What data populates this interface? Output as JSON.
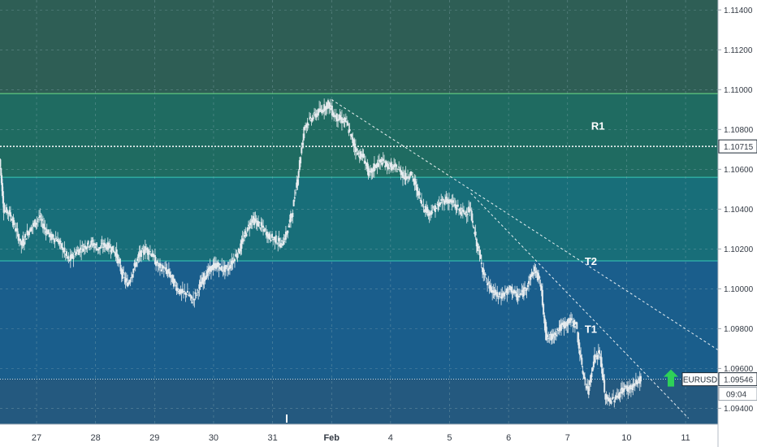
{
  "chart_data": {
    "type": "candlestick",
    "symbol": "EURUSD",
    "last_price": "1.09546",
    "countdown": "09:04",
    "y_ticks": [
      "1.11400",
      "1.11200",
      "1.11000",
      "1.10800",
      "1.10600",
      "1.10400",
      "1.10200",
      "1.10000",
      "1.09800",
      "1.09600",
      "1.09400"
    ],
    "y_tick_values": [
      1.114,
      1.112,
      1.11,
      1.108,
      1.106,
      1.104,
      1.102,
      1.1,
      1.098,
      1.096,
      1.094
    ],
    "ylim": [
      1.0932,
      1.1145
    ],
    "x_ticks": [
      {
        "label": "27",
        "day": 0,
        "bold": false
      },
      {
        "label": "28",
        "day": 1,
        "bold": false
      },
      {
        "label": "29",
        "day": 2,
        "bold": false
      },
      {
        "label": "30",
        "day": 3,
        "bold": false
      },
      {
        "label": "31",
        "day": 4,
        "bold": false
      },
      {
        "label": "Feb",
        "day": 5,
        "bold": true
      },
      {
        "label": "4",
        "day": 6,
        "bold": false
      },
      {
        "label": "5",
        "day": 7,
        "bold": false
      },
      {
        "label": "6",
        "day": 8,
        "bold": false
      },
      {
        "label": "7",
        "day": 9,
        "bold": false
      },
      {
        "label": "10",
        "day": 10,
        "bold": false
      },
      {
        "label": "11",
        "day": 11,
        "bold": false
      }
    ],
    "xlim": [
      -0.62,
      11.55
    ],
    "zones": [
      {
        "name": "R1",
        "from": 1.1056,
        "to": 1.1098,
        "color": "#1f6b61",
        "line": "#6ee08a"
      },
      {
        "name": "T2",
        "from": 1.1014,
        "to": 1.1056,
        "color": "#186e79",
        "line": "#38c9b9"
      },
      {
        "name": "T1",
        "from": 1.0932,
        "to": 1.1014,
        "color": "#1a5e8c",
        "line": "#38c9b9"
      }
    ],
    "zone_labels": [
      {
        "text": "R1",
        "day": 9.4,
        "price": 1.1082
      },
      {
        "text": "T2",
        "day": 9.29,
        "price": 1.1014
      },
      {
        "text": "T1",
        "day": 9.29,
        "price": 1.098
      }
    ],
    "horizontal_level": {
      "label": "1.10715",
      "price": 1.10715
    },
    "trendlines": [
      {
        "from": {
          "day": 5.0,
          "price": 1.1095
        },
        "to": {
          "day": 11.67,
          "price": 1.0967
        }
      },
      {
        "from": {
          "day": 7.36,
          "price": 1.1048
        },
        "to": {
          "day": 11.05,
          "price": 1.0935
        }
      }
    ],
    "series": [
      {
        "day": -0.62,
        "price": 1.1065
      },
      {
        "day": -0.55,
        "price": 1.104
      },
      {
        "day": -0.45,
        "price": 1.1038
      },
      {
        "day": -0.35,
        "price": 1.103
      },
      {
        "day": -0.25,
        "price": 1.1022
      },
      {
        "day": -0.15,
        "price": 1.1028
      },
      {
        "day": -0.05,
        "price": 1.1032
      },
      {
        "day": 0.05,
        "price": 1.1036
      },
      {
        "day": 0.15,
        "price": 1.103
      },
      {
        "day": 0.25,
        "price": 1.1026
      },
      {
        "day": 0.35,
        "price": 1.1025
      },
      {
        "day": 0.45,
        "price": 1.102
      },
      {
        "day": 0.55,
        "price": 1.1014
      },
      {
        "day": 0.65,
        "price": 1.1018
      },
      {
        "day": 0.75,
        "price": 1.102
      },
      {
        "day": 0.85,
        "price": 1.1022
      },
      {
        "day": 0.95,
        "price": 1.1023
      },
      {
        "day": 1.05,
        "price": 1.102
      },
      {
        "day": 1.15,
        "price": 1.1022
      },
      {
        "day": 1.25,
        "price": 1.1021
      },
      {
        "day": 1.35,
        "price": 1.1018
      },
      {
        "day": 1.45,
        "price": 1.1008
      },
      {
        "day": 1.55,
        "price": 1.1002
      },
      {
        "day": 1.65,
        "price": 1.101
      },
      {
        "day": 1.75,
        "price": 1.1017
      },
      {
        "day": 1.85,
        "price": 1.102
      },
      {
        "day": 1.95,
        "price": 1.1018
      },
      {
        "day": 2.05,
        "price": 1.1012
      },
      {
        "day": 2.15,
        "price": 1.101
      },
      {
        "day": 2.25,
        "price": 1.1008
      },
      {
        "day": 2.35,
        "price": 1.1002
      },
      {
        "day": 2.45,
        "price": 1.0998
      },
      {
        "day": 2.55,
        "price": 1.0998
      },
      {
        "day": 2.65,
        "price": 1.0994
      },
      {
        "day": 2.75,
        "price": 1.1
      },
      {
        "day": 2.85,
        "price": 1.1006
      },
      {
        "day": 2.95,
        "price": 1.101
      },
      {
        "day": 3.05,
        "price": 1.1012
      },
      {
        "day": 3.15,
        "price": 1.101
      },
      {
        "day": 3.25,
        "price": 1.101
      },
      {
        "day": 3.35,
        "price": 1.1015
      },
      {
        "day": 3.45,
        "price": 1.102
      },
      {
        "day": 3.55,
        "price": 1.1028
      },
      {
        "day": 3.65,
        "price": 1.1035
      },
      {
        "day": 3.75,
        "price": 1.1033
      },
      {
        "day": 3.85,
        "price": 1.103
      },
      {
        "day": 3.95,
        "price": 1.1026
      },
      {
        "day": 4.05,
        "price": 1.1025
      },
      {
        "day": 4.15,
        "price": 1.1022
      },
      {
        "day": 4.25,
        "price": 1.1028
      },
      {
        "day": 4.35,
        "price": 1.104
      },
      {
        "day": 4.45,
        "price": 1.106
      },
      {
        "day": 4.55,
        "price": 1.1082
      },
      {
        "day": 4.65,
        "price": 1.1085
      },
      {
        "day": 4.75,
        "price": 1.1088
      },
      {
        "day": 4.85,
        "price": 1.109
      },
      {
        "day": 4.95,
        "price": 1.1093
      },
      {
        "day": 5.05,
        "price": 1.1087
      },
      {
        "day": 5.15,
        "price": 1.1085
      },
      {
        "day": 5.25,
        "price": 1.1084
      },
      {
        "day": 5.35,
        "price": 1.1075
      },
      {
        "day": 5.45,
        "price": 1.1068
      },
      {
        "day": 5.55,
        "price": 1.1066
      },
      {
        "day": 5.65,
        "price": 1.1057
      },
      {
        "day": 5.75,
        "price": 1.1062
      },
      {
        "day": 5.85,
        "price": 1.1064
      },
      {
        "day": 5.95,
        "price": 1.1062
      },
      {
        "day": 6.05,
        "price": 1.1061
      },
      {
        "day": 6.15,
        "price": 1.106
      },
      {
        "day": 6.25,
        "price": 1.1056
      },
      {
        "day": 6.35,
        "price": 1.1058
      },
      {
        "day": 6.45,
        "price": 1.105
      },
      {
        "day": 6.55,
        "price": 1.1042
      },
      {
        "day": 6.65,
        "price": 1.1038
      },
      {
        "day": 6.75,
        "price": 1.104
      },
      {
        "day": 6.85,
        "price": 1.1043
      },
      {
        "day": 6.95,
        "price": 1.1045
      },
      {
        "day": 7.05,
        "price": 1.1043
      },
      {
        "day": 7.15,
        "price": 1.104
      },
      {
        "day": 7.25,
        "price": 1.1038
      },
      {
        "day": 7.35,
        "price": 1.104
      },
      {
        "day": 7.45,
        "price": 1.1025
      },
      {
        "day": 7.55,
        "price": 1.1012
      },
      {
        "day": 7.65,
        "price": 1.1002
      },
      {
        "day": 7.75,
        "price": 1.0998
      },
      {
        "day": 7.85,
        "price": 1.0996
      },
      {
        "day": 7.95,
        "price": 1.0998
      },
      {
        "day": 8.05,
        "price": 1.1
      },
      {
        "day": 8.15,
        "price": 1.0996
      },
      {
        "day": 8.25,
        "price": 1.0998
      },
      {
        "day": 8.35,
        "price": 1.1004
      },
      {
        "day": 8.45,
        "price": 1.101
      },
      {
        "day": 8.55,
        "price": 1.1002
      },
      {
        "day": 8.65,
        "price": 1.0975
      },
      {
        "day": 8.75,
        "price": 1.0976
      },
      {
        "day": 8.85,
        "price": 1.098
      },
      {
        "day": 8.95,
        "price": 1.0982
      },
      {
        "day": 9.05,
        "price": 1.0984
      },
      {
        "day": 9.15,
        "price": 1.0982
      },
      {
        "day": 9.25,
        "price": 1.096
      },
      {
        "day": 9.35,
        "price": 1.0948
      },
      {
        "day": 9.45,
        "price": 1.0965
      },
      {
        "day": 9.55,
        "price": 1.0968
      },
      {
        "day": 9.65,
        "price": 1.0945
      },
      {
        "day": 9.75,
        "price": 1.0944
      },
      {
        "day": 9.85,
        "price": 1.0946
      },
      {
        "day": 9.95,
        "price": 1.095
      },
      {
        "day": 10.05,
        "price": 1.095
      },
      {
        "day": 10.15,
        "price": 1.0952
      },
      {
        "day": 10.25,
        "price": 1.0955
      }
    ]
  },
  "colors": {
    "axis_bg": "#ffffff",
    "top_band": "#2e5e55",
    "lower_band": "#1a5e8c",
    "grid": "#8fb0b8",
    "candles": "#e6ebee",
    "level_line": "#ffffff",
    "last_price": "#ffffff",
    "arrow": "#2ed158",
    "tick_text": "#333a44"
  },
  "icons": {
    "signal": "up-arrow-icon"
  }
}
